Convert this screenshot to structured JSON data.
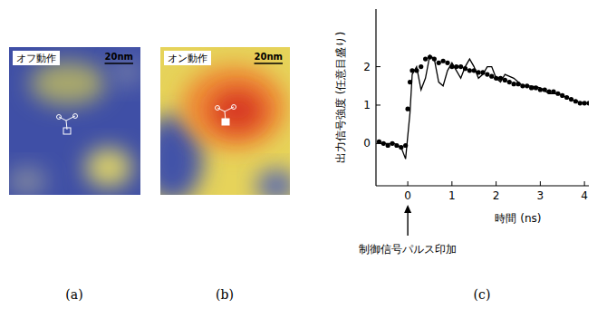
{
  "figure": {
    "panel_labels": [
      "(a)",
      "(b)",
      "(c)"
    ]
  },
  "images": [
    {
      "label": "オフ動作",
      "scale_bar": "20nm"
    },
    {
      "label": "オン動作",
      "scale_bar": "20nm"
    }
  ],
  "chart_data": {
    "type": "line",
    "y_label": "出力信号強度 (任意目盛り)",
    "x_label": "時間 (ns)",
    "annotation": {
      "text": "制御信号パルス印加",
      "x": 0
    },
    "xlim": [
      -0.72,
      4.1
    ],
    "ylim": [
      -1.1,
      3.5
    ],
    "xticks": [
      0,
      1,
      2,
      3,
      4
    ],
    "yticks": [
      0,
      1,
      2
    ],
    "grid": false,
    "series": [
      {
        "type": "scatter",
        "marker": "circle",
        "color": "#000000",
        "x": [
          -0.65,
          -0.55,
          -0.45,
          -0.35,
          -0.25,
          -0.15,
          -0.05,
          0,
          0.05,
          0.1,
          0.2,
          0.3,
          0.4,
          0.5,
          0.6,
          0.7,
          0.8,
          0.9,
          1.0,
          1.1,
          1.2,
          1.3,
          1.4,
          1.5,
          1.6,
          1.7,
          1.8,
          1.9,
          2.0,
          2.1,
          2.2,
          2.3,
          2.4,
          2.5,
          2.6,
          2.7,
          2.8,
          2.9,
          3.0,
          3.1,
          3.2,
          3.3,
          3.4,
          3.5,
          3.6,
          3.7,
          3.8,
          3.9,
          4.0,
          4.1
        ],
        "values": [
          0.05,
          0.0,
          -0.05,
          0.0,
          -0.05,
          -0.1,
          -0.05,
          0.9,
          1.6,
          1.9,
          1.9,
          2.0,
          2.2,
          2.25,
          2.2,
          2.1,
          2.15,
          2.1,
          2.0,
          2.0,
          2.0,
          1.95,
          1.9,
          1.9,
          1.85,
          1.85,
          1.8,
          1.75,
          1.7,
          1.7,
          1.65,
          1.6,
          1.55,
          1.55,
          1.5,
          1.5,
          1.45,
          1.45,
          1.4,
          1.4,
          1.35,
          1.35,
          1.3,
          1.25,
          1.2,
          1.15,
          1.1,
          1.05,
          1.05,
          1.05
        ]
      },
      {
        "type": "line",
        "line_style": "solid",
        "color": "#000000",
        "x": [
          -0.65,
          -0.3,
          -0.15,
          -0.05,
          0.05,
          0.1,
          0.2,
          0.3,
          0.4,
          0.5,
          0.6,
          0.7,
          0.8,
          0.9,
          1.0,
          1.1,
          1.2,
          1.3,
          1.4,
          1.5,
          1.6,
          1.7,
          1.8,
          1.9,
          2.0,
          2.1,
          2.2,
          2.4,
          2.6,
          2.8,
          3.0,
          3.2,
          3.4,
          3.6,
          3.8,
          4.0,
          4.1
        ],
        "values": [
          0.0,
          0.0,
          -0.1,
          -0.4,
          0.8,
          1.8,
          2.0,
          1.4,
          1.7,
          2.3,
          2.2,
          1.6,
          1.5,
          1.9,
          2.1,
          1.9,
          1.7,
          2.0,
          2.2,
          2.0,
          1.7,
          1.8,
          2.0,
          2.0,
          1.7,
          1.6,
          1.8,
          1.7,
          1.5,
          1.5,
          1.45,
          1.3,
          1.3,
          1.2,
          1.1,
          1.05,
          1.05
        ]
      }
    ]
  }
}
